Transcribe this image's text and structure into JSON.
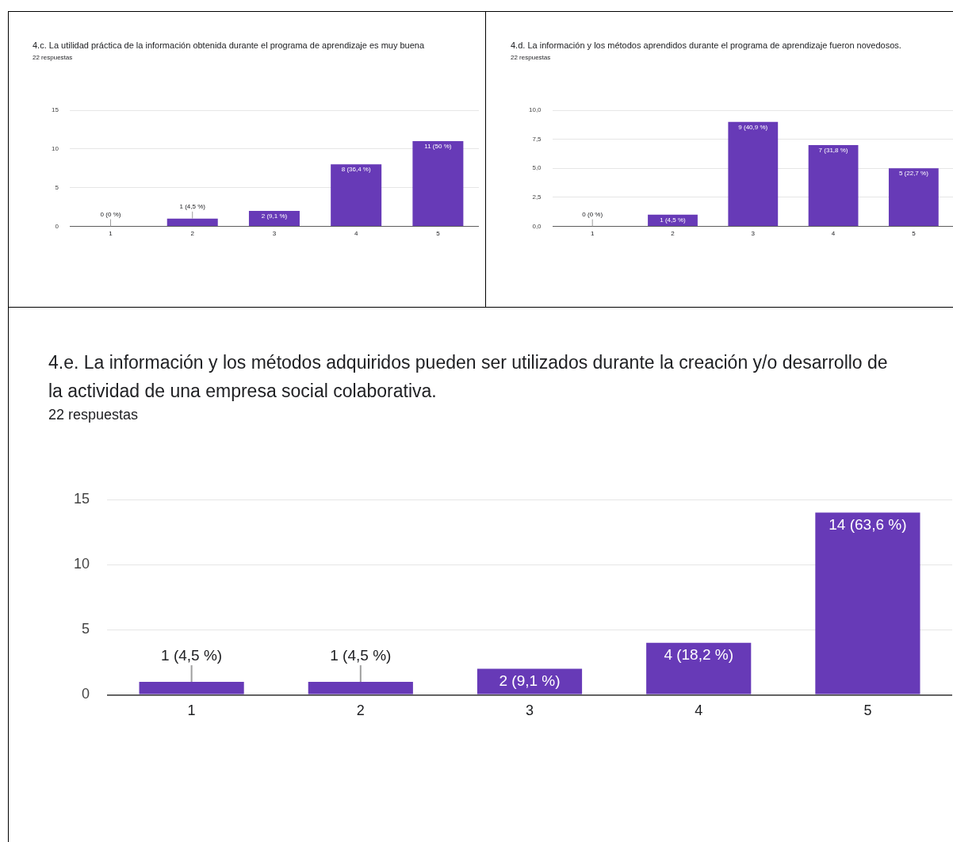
{
  "chart_data": [
    {
      "type": "bar",
      "title": "4.c. La utilidad práctica de la información obtenida durante el programa de aprendizaje es muy buena",
      "subtitle": "22 respuestas",
      "categories": [
        "1",
        "2",
        "3",
        "4",
        "5"
      ],
      "values": [
        0,
        1,
        2,
        8,
        11
      ],
      "value_labels": [
        "0 (0 %)",
        "1 (4,5 %)",
        "2 (9,1 %)",
        "8 (36,4 %)",
        "11 (50 %)"
      ],
      "color": "#673ab7",
      "ylim": [
        0,
        15
      ],
      "yticks": [
        0,
        5,
        10,
        15
      ],
      "grid": "y"
    },
    {
      "type": "bar",
      "title": "4.d. La información y los métodos aprendidos durante el programa de aprendizaje fueron novedosos.",
      "subtitle": "22 respuestas",
      "categories": [
        "1",
        "2",
        "3",
        "4",
        "5"
      ],
      "values": [
        0,
        1,
        9,
        7,
        5
      ],
      "value_labels": [
        "0 (0 %)",
        "1 (4,5 %)",
        "9 (40,9 %)",
        "7 (31,8 %)",
        "5 (22,7 %)"
      ],
      "color": "#673ab7",
      "ylim": [
        0,
        10
      ],
      "yticks": [
        {
          "value": 0,
          "label": "0,0"
        },
        {
          "value": 2.5,
          "label": "2,5"
        },
        {
          "value": 5,
          "label": "5,0"
        },
        {
          "value": 7.5,
          "label": "7,5"
        },
        {
          "value": 10,
          "label": "10,0"
        }
      ],
      "grid": "y"
    },
    {
      "type": "bar",
      "title": "4.e. La información y los métodos adquiridos pueden ser utilizados durante la creación y/o desarrollo de la actividad de una empresa social colaborativa.",
      "subtitle": "22 respuestas",
      "categories": [
        "1",
        "2",
        "3",
        "4",
        "5"
      ],
      "values": [
        1,
        1,
        2,
        4,
        14
      ],
      "value_labels": [
        "1 (4,5 %)",
        "1 (4,5 %)",
        "2 (9,1 %)",
        "4 (18,2 %)",
        "14 (63,6 %)"
      ],
      "color": "#673ab7",
      "ylim": [
        0,
        15
      ],
      "yticks": [
        0,
        5,
        10,
        15
      ],
      "grid": "y"
    }
  ]
}
